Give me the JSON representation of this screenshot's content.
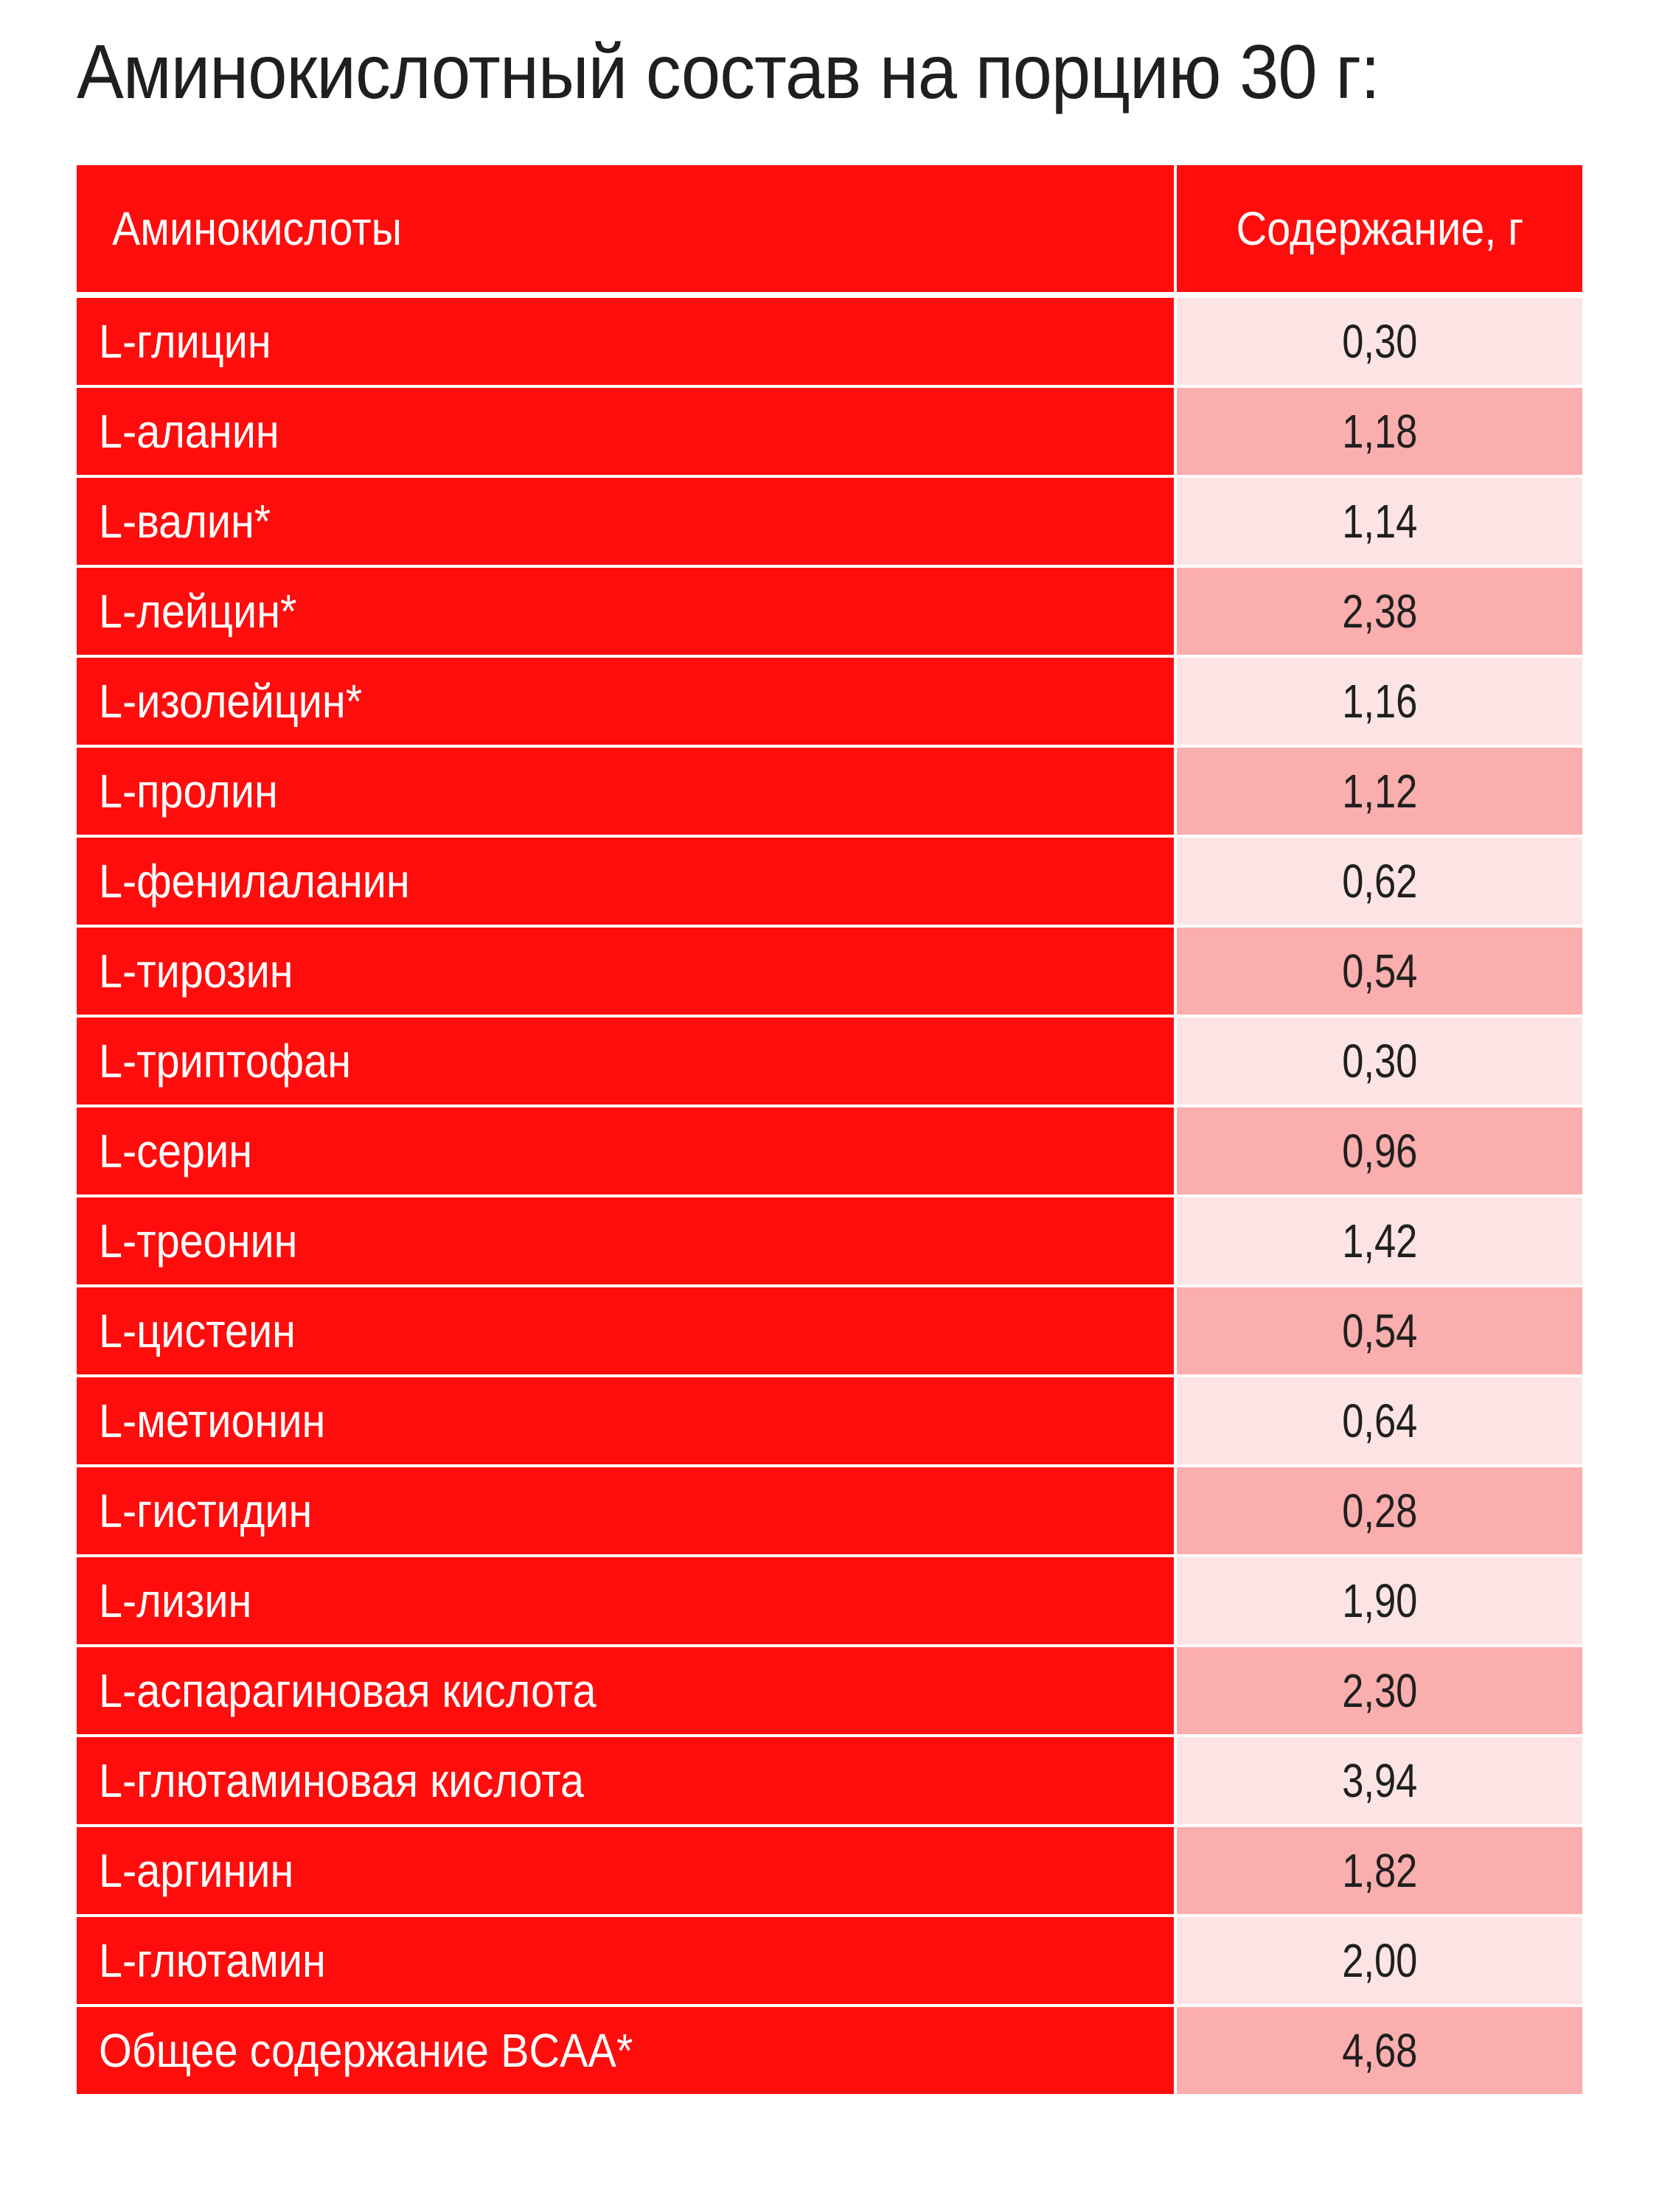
{
  "title": "Аминокислотный состав на порцию 30 г:",
  "table": {
    "headers": [
      "Аминокислоты",
      "Содержание, г"
    ],
    "rows": [
      {
        "name": "L-глицин",
        "value": "0,30"
      },
      {
        "name": "L-аланин",
        "value": "1,18"
      },
      {
        "name": "L-валин*",
        "value": "1,14"
      },
      {
        "name": "L-лейцин*",
        "value": "2,38"
      },
      {
        "name": "L-изолейцин*",
        "value": "1,16"
      },
      {
        "name": "L-пролин",
        "value": "1,12"
      },
      {
        "name": "L-фенилаланин",
        "value": "0,62"
      },
      {
        "name": "L-тирозин",
        "value": "0,54"
      },
      {
        "name": "L-триптофан",
        "value": "0,30"
      },
      {
        "name": "L-серин",
        "value": "0,96"
      },
      {
        "name": "L-треонин",
        "value": "1,42"
      },
      {
        "name": "L-цистеин",
        "value": "0,54"
      },
      {
        "name": "L-метионин",
        "value": "0,64"
      },
      {
        "name": "L-гистидин",
        "value": "0,28"
      },
      {
        "name": "L-лизин",
        "value": "1,90"
      },
      {
        "name": "L-аспарагиновая кислота",
        "value": "2,30"
      },
      {
        "name": "L-глютаминовая кислота",
        "value": "3,94"
      },
      {
        "name": "L-аргинин",
        "value": "1,82"
      },
      {
        "name": "L-глютамин",
        "value": "2,00"
      },
      {
        "name": "Общее содержание BCAA*",
        "value": "4,68"
      }
    ]
  },
  "colors": {
    "header_bg": "#ff0d0d",
    "name_cell_bg": "#ff0d0d",
    "value_cell_light": "#fde4e4",
    "value_cell_dark": "#fbaeae",
    "title_text": "#1f1f1f"
  }
}
